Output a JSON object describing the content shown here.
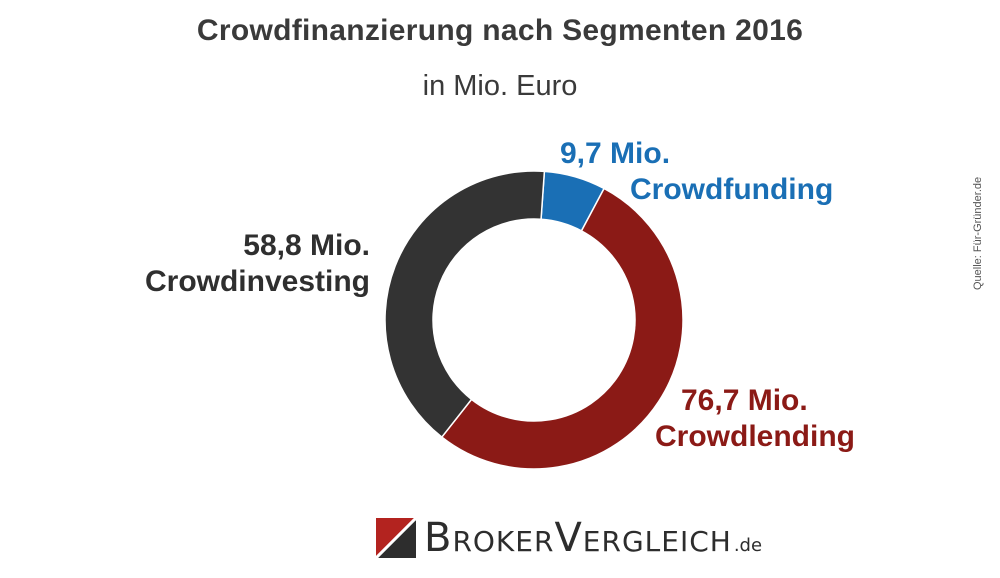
{
  "chart_data": {
    "type": "pie",
    "title": "Crowdfinanzierung nach Segmenten 2016",
    "subtitle": "in Mio. Euro",
    "donut": true,
    "slices": [
      {
        "label": "Crowdfunding",
        "value": 9.7,
        "value_label": "9,7 Mio.",
        "color": "#1a6fb5"
      },
      {
        "label": "Crowdlending",
        "value": 76.7,
        "value_label": "76,7 Mio.",
        "color": "#8b1a16"
      },
      {
        "label": "Crowdinvesting",
        "value": 58.8,
        "value_label": "58,8 Mio.",
        "color": "#333333"
      }
    ]
  },
  "source": "Quelle: Für-Gründer.de",
  "brand": {
    "name": "BrokerVergleich",
    "suffix": ".de",
    "colors": {
      "red": "#b3231f",
      "dark": "#2d2d2d"
    }
  }
}
